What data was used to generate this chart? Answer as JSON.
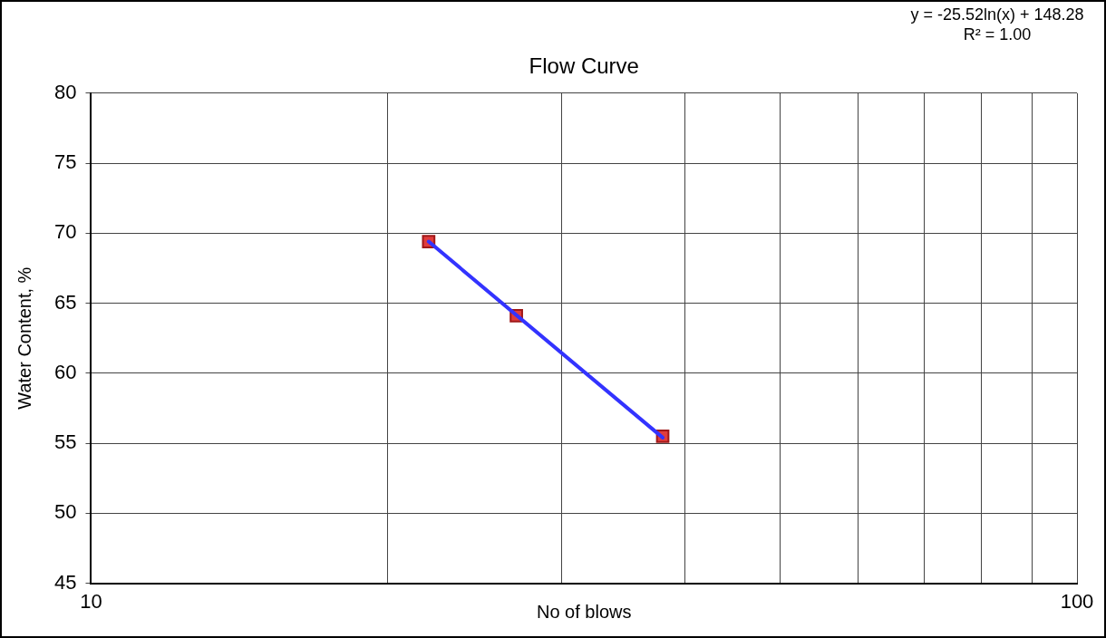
{
  "chart_data": {
    "type": "scatter",
    "title": "Flow Curve",
    "xlabel": "No of blows",
    "ylabel": "Water Content, %",
    "log": "x",
    "xlim": [
      10,
      100
    ],
    "xticks": [
      10,
      {
        "value": 20,
        "label": null
      },
      {
        "value": 30,
        "label": null
      },
      {
        "value": 40,
        "label": null
      },
      {
        "value": 50,
        "label": null
      },
      {
        "value": 60,
        "label": null
      },
      {
        "value": 70,
        "label": null
      },
      {
        "value": 80,
        "label": null
      },
      {
        "value": 90,
        "label": null
      },
      100
    ],
    "ylim": [
      45,
      80
    ],
    "yticks": [
      45,
      50,
      55,
      60,
      65,
      70,
      75,
      80
    ],
    "grid": true,
    "marker": "square",
    "series": [
      {
        "color": "#e03c3c",
        "x": [
          22,
          27,
          38
        ],
        "values": [
          69.4,
          64.1,
          55.5
        ]
      },
      {
        "type": "line",
        "color": "#3333ff",
        "marker": "none",
        "x": [
          22,
          38
        ],
        "values": [
          69.4,
          55.4
        ]
      }
    ],
    "annotations": [
      "y = -25.52ln(x) + 148.28",
      "R² = 1.00"
    ]
  }
}
